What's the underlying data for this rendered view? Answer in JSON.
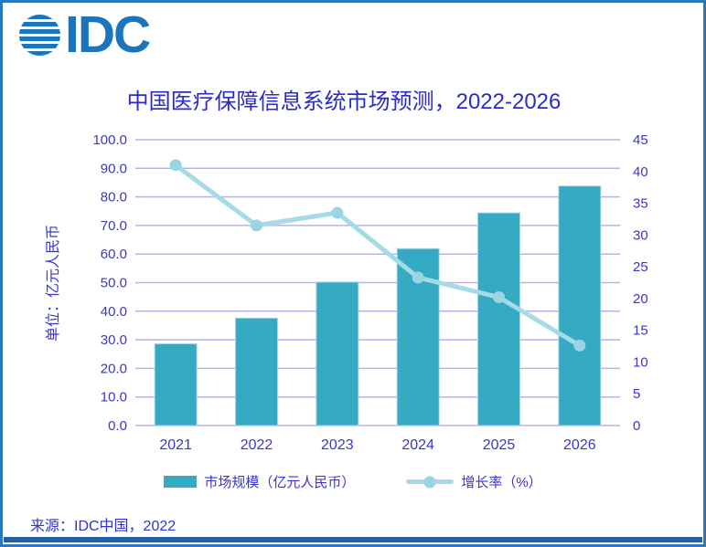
{
  "logo": {
    "text": "IDC",
    "color": "#1b75bc"
  },
  "title": {
    "text": "中国医疗保障信息系统市场预测，2022-2026",
    "color": "#2b2bc8"
  },
  "source": {
    "text": "来源：IDC中国，2022"
  },
  "chart_data": {
    "type": "bar+line combo",
    "title": "中国医疗保障信息系统市场预测，2022-2026",
    "categories": [
      "2021",
      "2022",
      "2023",
      "2024",
      "2025",
      "2026"
    ],
    "series": [
      {
        "name": "市场规模（亿元人民币）",
        "type": "bar",
        "axis": "left",
        "values": [
          28.6,
          37.6,
          50.2,
          61.9,
          74.4,
          83.8
        ],
        "color": "#36a9c3",
        "border": "#a7d9e4"
      },
      {
        "name": "增长率（%）",
        "type": "line",
        "axis": "right",
        "values": [
          41.0,
          31.5,
          33.5,
          23.3,
          20.2,
          12.6
        ],
        "color": "#a5dae7",
        "marker_color": "#9bd4e3"
      }
    ],
    "left_axis": {
      "title": "单位：亿元人民币",
      "min": 0,
      "max": 100,
      "step": 10,
      "tick_labels": [
        "0.0",
        "10.0",
        "20.0",
        "30.0",
        "40.0",
        "50.0",
        "60.0",
        "70.0",
        "80.0",
        "90.0",
        "100.0"
      ]
    },
    "right_axis": {
      "min": 0,
      "max": 45,
      "step": 5,
      "tick_labels": [
        "0",
        "5",
        "10",
        "15",
        "20",
        "25",
        "30",
        "35",
        "40",
        "45"
      ]
    },
    "grid": true,
    "gridline_color": "#b9b1ec",
    "text_color": "#3a36cc",
    "legend_position": "bottom"
  }
}
